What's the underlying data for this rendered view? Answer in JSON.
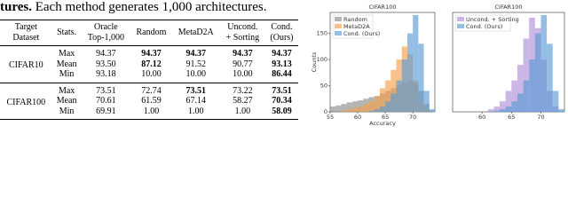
{
  "caption": {
    "lead": "tures.",
    "text": "Each method generates 1,000 architectures."
  },
  "table": {
    "header": [
      [
        "Target",
        "Dataset"
      ],
      [
        "Stats."
      ],
      [
        "Oracle",
        "Top-1,000"
      ],
      [
        "Random"
      ],
      [
        "MetaD2A"
      ],
      [
        "Uncond.",
        "+ Sorting"
      ],
      [
        "Cond.",
        "(Ours)"
      ]
    ],
    "groups": [
      {
        "dataset": "CIFAR10",
        "rows": [
          [
            "Max",
            "94.37",
            "94.37",
            "94.37",
            "94.37",
            "94.37"
          ],
          [
            "Mean",
            "93.50",
            "87.12",
            "91.52",
            "90.77",
            "93.13"
          ],
          [
            "Min",
            "93.18",
            "10.00",
            "10.00",
            "10.00",
            "86.44"
          ]
        ]
      },
      {
        "dataset": "CIFAR100",
        "rows": [
          [
            "Max",
            "73.51",
            "72.74",
            "73.51",
            "73.22",
            "73.51"
          ],
          [
            "Mean",
            "70.61",
            "61.59",
            "67.14",
            "58.27",
            "70.34"
          ],
          [
            "Min",
            "69.91",
            "1.00",
            "1.00",
            "1.00",
            "58.09"
          ]
        ]
      }
    ]
  },
  "chart_data": [
    {
      "type": "histogram",
      "title": "CIFAR100",
      "x_label": "Accuracy",
      "y_label": "Counts",
      "bins": [
        55,
        56,
        57,
        58,
        59,
        60,
        61,
        62,
        63,
        64,
        65,
        66,
        67,
        68,
        69,
        70,
        71,
        72,
        73,
        74
      ],
      "series": [
        {
          "name": "Random",
          "color": "#8c8c8c",
          "values": [
            10,
            12,
            15,
            18,
            20,
            22,
            25,
            28,
            30,
            35,
            40,
            45,
            50,
            55,
            60,
            55,
            40,
            15,
            2
          ]
        },
        {
          "name": "MetaD2A",
          "color": "#f5a04a",
          "values": [
            0,
            0,
            2,
            5,
            8,
            10,
            15,
            20,
            30,
            45,
            60,
            80,
            100,
            125,
            110,
            60,
            20,
            5,
            0
          ]
        },
        {
          "name": "Cond. (Ours)",
          "color": "#5b9bd5",
          "values": [
            0,
            0,
            0,
            0,
            0,
            0,
            0,
            2,
            5,
            10,
            20,
            35,
            60,
            100,
            150,
            185,
            130,
            40,
            5
          ]
        }
      ],
      "xlim": [
        55,
        74
      ],
      "xticks": [
        55,
        60,
        65,
        70
      ],
      "ylim": [
        0,
        190
      ],
      "yticks": [
        0,
        50,
        100,
        150
      ],
      "legend": "upper left"
    },
    {
      "type": "histogram",
      "title": "CIFAR100",
      "bins": [
        55,
        56,
        57,
        58,
        59,
        60,
        61,
        62,
        63,
        64,
        65,
        66,
        67,
        68,
        69,
        70,
        71,
        72,
        73,
        74
      ],
      "series": [
        {
          "name": "Uncond. + Sorting",
          "color": "#b08fd8",
          "values": [
            0,
            0,
            0,
            0,
            0,
            0,
            5,
            10,
            20,
            40,
            60,
            90,
            140,
            180,
            160,
            100,
            40,
            10,
            0
          ]
        },
        {
          "name": "Cond. (Ours)",
          "color": "#5b9bd5",
          "values": [
            0,
            0,
            0,
            0,
            0,
            0,
            0,
            2,
            5,
            10,
            20,
            35,
            60,
            100,
            150,
            185,
            130,
            40,
            5
          ]
        }
      ],
      "xlim": [
        55,
        74
      ],
      "xticks": [
        60,
        65,
        70
      ],
      "ylim": [
        0,
        190
      ],
      "legend": "upper left"
    }
  ]
}
